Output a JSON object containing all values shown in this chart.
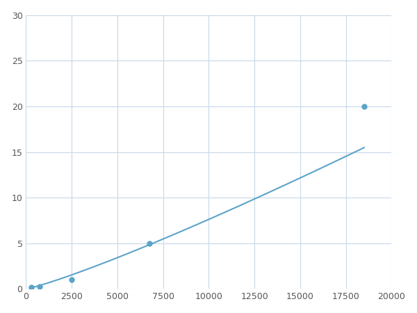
{
  "x_data": [
    300,
    750,
    2500,
    6750,
    18500
  ],
  "y_data": [
    0.2,
    0.3,
    1.0,
    5.0,
    20.0
  ],
  "line_color": "#5ba3c9",
  "marker_color": "#5ba3c9",
  "marker_size": 5,
  "line_width": 1.5,
  "xlim": [
    0,
    20000
  ],
  "ylim": [
    0,
    30
  ],
  "xticks": [
    0,
    2500,
    5000,
    7500,
    10000,
    12500,
    15000,
    17500,
    20000
  ],
  "yticks": [
    0,
    5,
    10,
    15,
    20,
    25,
    30
  ],
  "background_color": "#ffffff",
  "grid_color": "#c8d8e8",
  "figsize": [
    6.0,
    4.5
  ],
  "dpi": 100
}
